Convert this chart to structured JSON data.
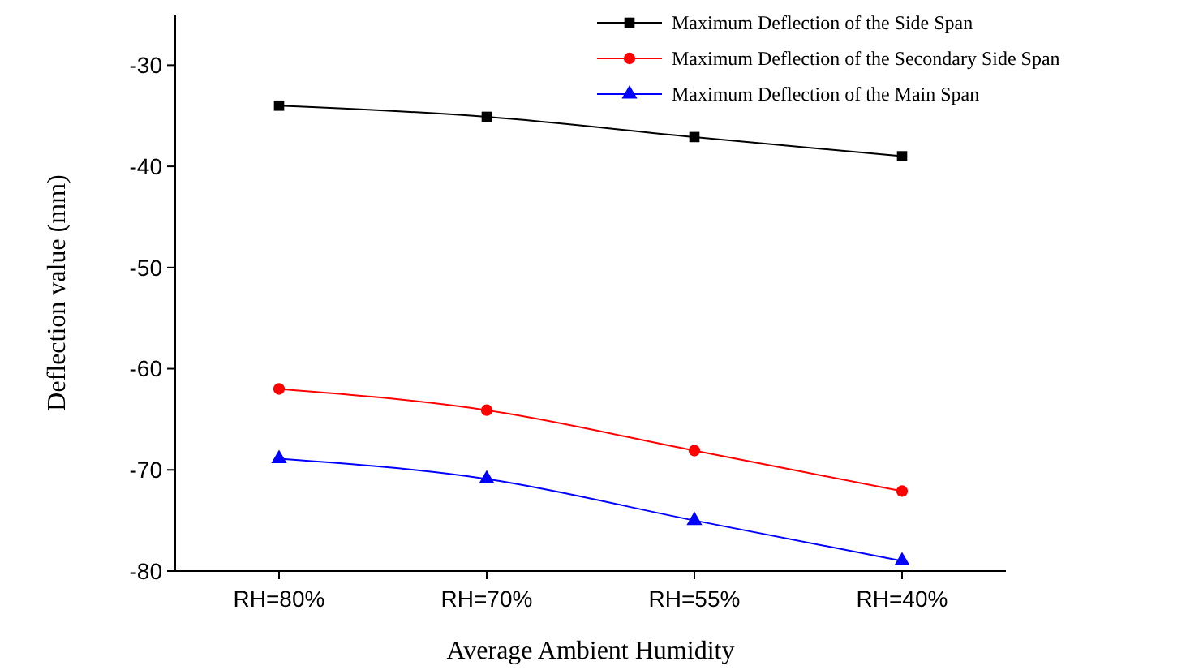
{
  "chart_data": {
    "type": "line",
    "xlabel": "Average Ambient Humidity",
    "ylabel": "Deflection value (mm)",
    "categories": [
      "RH=80%",
      "RH=70%",
      "RH=55%",
      "RH=40%"
    ],
    "series": [
      {
        "name": "Maximum Deflection of the Side Span",
        "color": "#000000",
        "marker": "square",
        "values": [
          -34.0,
          -35.1,
          -37.1,
          -39.0
        ]
      },
      {
        "name": "Maximum Deflection of the Secondary Side Span",
        "color": "#ff0000",
        "marker": "circle",
        "values": [
          -62.0,
          -64.1,
          -68.1,
          -72.1
        ]
      },
      {
        "name": "Maximum Deflection of the Main Span",
        "color": "#0000ff",
        "marker": "triangle",
        "values": [
          -68.9,
          -70.9,
          -75.0,
          -79.0
        ]
      }
    ],
    "ylim": [
      -80,
      -25
    ],
    "yticks": [
      -80,
      -70,
      -60,
      -50,
      -40,
      -30
    ],
    "grid": false,
    "legend": "top right"
  }
}
